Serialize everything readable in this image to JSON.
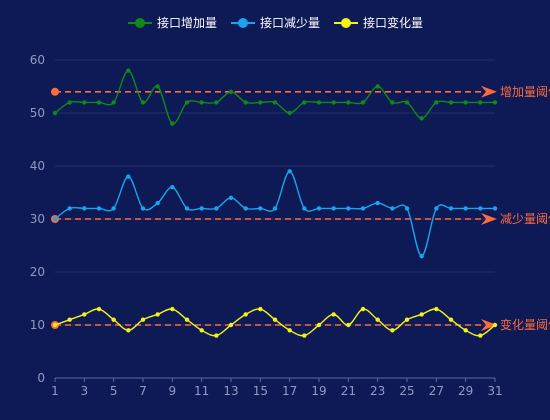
{
  "chart_data": {
    "type": "line",
    "title": "",
    "xlabel": "",
    "ylabel": "",
    "x": [
      1,
      2,
      3,
      4,
      5,
      6,
      7,
      8,
      9,
      10,
      11,
      12,
      13,
      14,
      15,
      16,
      17,
      18,
      19,
      20,
      21,
      22,
      23,
      24,
      25,
      26,
      27,
      28,
      29,
      30,
      31
    ],
    "x_tick_labels": [
      "1",
      "3",
      "5",
      "7",
      "9",
      "11",
      "13",
      "15",
      "17",
      "19",
      "21",
      "23",
      "25",
      "27",
      "29",
      "31"
    ],
    "ylim": [
      0,
      60
    ],
    "y_ticks": [
      0,
      10,
      20,
      30,
      40,
      50,
      60
    ],
    "grid": true,
    "legend_position": "top-center",
    "series": [
      {
        "name": "接口增加量",
        "color": "#0f8a16",
        "values": [
          50,
          52,
          52,
          52,
          52,
          58,
          52,
          55,
          48,
          52,
          52,
          52,
          54,
          52,
          52,
          52,
          50,
          52,
          52,
          52,
          52,
          52,
          55,
          52,
          52,
          49,
          52,
          52,
          52,
          52,
          52
        ]
      },
      {
        "name": "接口减少量",
        "color": "#1aa3ef",
        "values": [
          30,
          32,
          32,
          32,
          32,
          38,
          32,
          33,
          36,
          32,
          32,
          32,
          34,
          32,
          32,
          32,
          39,
          32,
          32,
          32,
          32,
          32,
          33,
          32,
          32,
          23,
          32,
          32,
          32,
          32,
          32
        ]
      },
      {
        "name": "接口变化量",
        "color": "#f2f21b",
        "values": [
          10,
          11,
          12,
          13,
          11,
          9,
          11,
          12,
          13,
          11,
          9,
          8,
          10,
          12,
          13,
          11,
          9,
          8,
          10,
          12,
          10,
          13,
          11,
          9,
          11,
          12,
          13,
          11,
          9,
          8,
          10
        ]
      }
    ],
    "thresholds": [
      {
        "label": "增加量阈值",
        "value": 54,
        "color": "#ff6a3d"
      },
      {
        "label": "减少量阈值",
        "value": 30,
        "color": "#ff6a3d"
      },
      {
        "label": "变化量阈值",
        "value": 10,
        "color": "#ff6a3d"
      }
    ]
  }
}
